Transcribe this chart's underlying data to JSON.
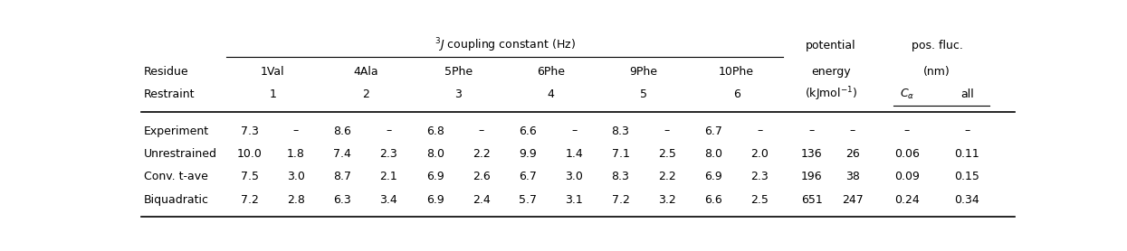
{
  "fig_width": 12.45,
  "fig_height": 2.78,
  "dpi": 100,
  "background_color": "#ffffff",
  "font_color": "#000000",
  "font_size": 9.0,
  "residue_labels": [
    "1Val",
    "4Ala",
    "5Phe",
    "6Phe",
    "9Phe",
    "10Phe"
  ],
  "restraint_nums": [
    "1",
    "2",
    "3",
    "4",
    "5",
    "6"
  ],
  "row_labels": [
    "Experiment",
    "Unrestrained",
    "Conv. t-ave",
    "Biquadratic"
  ],
  "data": [
    [
      "7.3",
      "–",
      "8.6",
      "–",
      "6.8",
      "–",
      "6.6",
      "–",
      "8.3",
      "–",
      "6.7",
      "–",
      "–",
      "–",
      "–",
      "–"
    ],
    [
      "10.0",
      "1.8",
      "7.4",
      "2.3",
      "8.0",
      "2.2",
      "9.9",
      "1.4",
      "7.1",
      "2.5",
      "8.0",
      "2.0",
      "136",
      "26",
      "0.06",
      "0.11"
    ],
    [
      "7.5",
      "3.0",
      "8.7",
      "2.1",
      "6.9",
      "2.6",
      "6.7",
      "3.0",
      "8.3",
      "2.2",
      "6.9",
      "2.3",
      "196",
      "38",
      "0.09",
      "0.15"
    ],
    [
      "7.2",
      "2.8",
      "6.3",
      "3.4",
      "6.9",
      "2.4",
      "5.7",
      "3.1",
      "7.2",
      "3.2",
      "6.6",
      "2.5",
      "651",
      "247",
      "0.24",
      "0.34"
    ]
  ]
}
